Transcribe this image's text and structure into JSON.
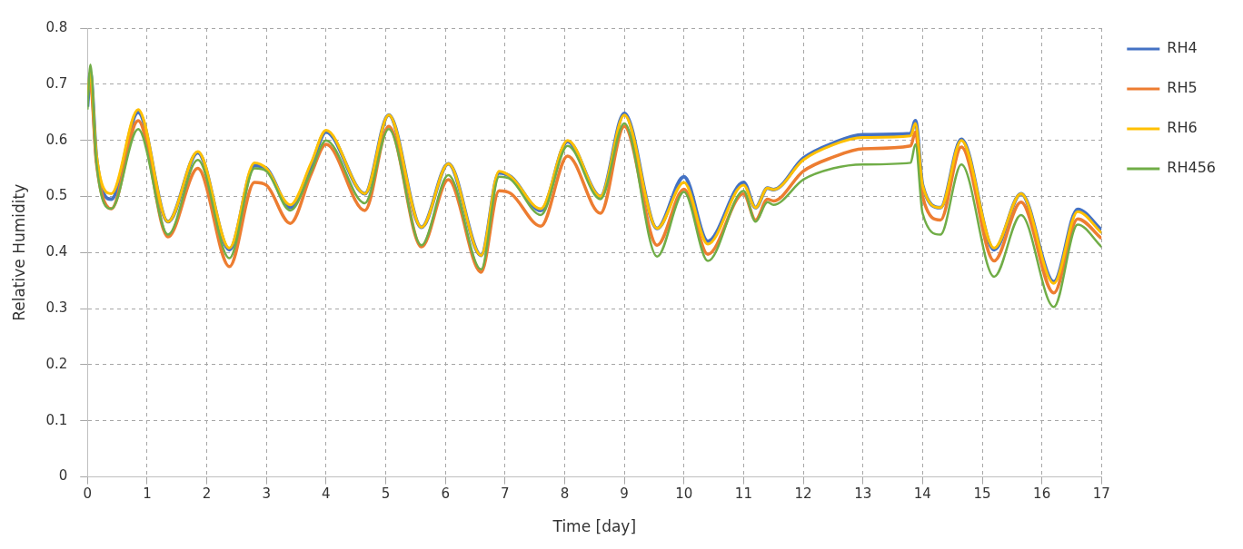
{
  "chart_data": {
    "type": "line",
    "xlabel": "Time [day]",
    "ylabel": "Relative Humidity",
    "x": [
      0,
      0.05,
      0.15,
      0.4,
      0.85,
      1.35,
      1.85,
      2.38,
      2.8,
      3.0,
      3.4,
      3.75,
      4.0,
      4.65,
      5.05,
      5.6,
      6.05,
      6.6,
      6.9,
      7.1,
      7.6,
      8.05,
      8.6,
      9.0,
      9.55,
      10.0,
      10.4,
      11.0,
      11.2,
      11.4,
      11.5,
      12.0,
      12.5,
      13.0,
      13.8,
      13.88,
      14.0,
      14.3,
      14.65,
      15.2,
      15.65,
      16.2,
      16.6,
      17.0
    ],
    "series": [
      {
        "name": "RH4",
        "color": "#4472c4",
        "values": [
          0.66,
          0.72,
          0.57,
          0.495,
          0.65,
          0.455,
          0.578,
          0.405,
          0.555,
          0.55,
          0.48,
          0.555,
          0.615,
          0.505,
          0.645,
          0.445,
          0.558,
          0.395,
          0.542,
          0.535,
          0.475,
          0.598,
          0.5,
          0.648,
          0.443,
          0.535,
          0.42,
          0.525,
          0.48,
          0.515,
          0.512,
          0.568,
          0.595,
          0.61,
          0.612,
          0.635,
          0.52,
          0.48,
          0.602,
          0.405,
          0.505,
          0.348,
          0.477,
          0.44
        ]
      },
      {
        "name": "RH5",
        "color": "#ed7d31",
        "values": [
          0.69,
          0.7,
          0.56,
          0.478,
          0.635,
          0.428,
          0.55,
          0.375,
          0.525,
          0.52,
          0.452,
          0.54,
          0.593,
          0.475,
          0.625,
          0.41,
          0.53,
          0.365,
          0.51,
          0.505,
          0.447,
          0.572,
          0.47,
          0.625,
          0.413,
          0.513,
          0.397,
          0.505,
          0.458,
          0.495,
          0.492,
          0.545,
          0.57,
          0.585,
          0.59,
          0.615,
          0.5,
          0.458,
          0.588,
          0.385,
          0.49,
          0.328,
          0.46,
          0.425
        ]
      },
      {
        "name": "RH6",
        "color": "#ffc000",
        "values": [
          0.68,
          0.72,
          0.575,
          0.505,
          0.655,
          0.455,
          0.58,
          0.408,
          0.56,
          0.55,
          0.485,
          0.56,
          0.618,
          0.505,
          0.645,
          0.445,
          0.558,
          0.395,
          0.545,
          0.535,
          0.478,
          0.6,
          0.5,
          0.645,
          0.443,
          0.525,
          0.415,
          0.52,
          0.48,
          0.515,
          0.512,
          0.565,
          0.592,
          0.605,
          0.608,
          0.63,
          0.52,
          0.48,
          0.6,
          0.408,
          0.505,
          0.345,
          0.473,
          0.435
        ]
      },
      {
        "name": "RH456",
        "color": "#70ad47",
        "values": [
          0.655,
          0.735,
          0.56,
          0.478,
          0.62,
          0.432,
          0.565,
          0.39,
          0.55,
          0.545,
          0.475,
          0.545,
          0.6,
          0.488,
          0.62,
          0.413,
          0.538,
          0.37,
          0.535,
          0.53,
          0.467,
          0.59,
          0.495,
          0.63,
          0.393,
          0.508,
          0.385,
          0.51,
          0.455,
          0.49,
          0.485,
          0.53,
          0.55,
          0.557,
          0.56,
          0.593,
          0.47,
          0.432,
          0.557,
          0.357,
          0.467,
          0.303,
          0.45,
          0.41
        ]
      }
    ],
    "xlim": [
      0,
      17
    ],
    "xticks": [
      0,
      1,
      2,
      3,
      4,
      5,
      6,
      7,
      8,
      9,
      10,
      11,
      12,
      13,
      14,
      15,
      16,
      17
    ],
    "ylim": [
      0,
      0.8
    ],
    "yticks": [
      0,
      0.1,
      0.2,
      0.3,
      0.4,
      0.5,
      0.6,
      0.7,
      0.8
    ],
    "grid": true,
    "legend": "right",
    "marker": "none",
    "line_style": "solid"
  }
}
